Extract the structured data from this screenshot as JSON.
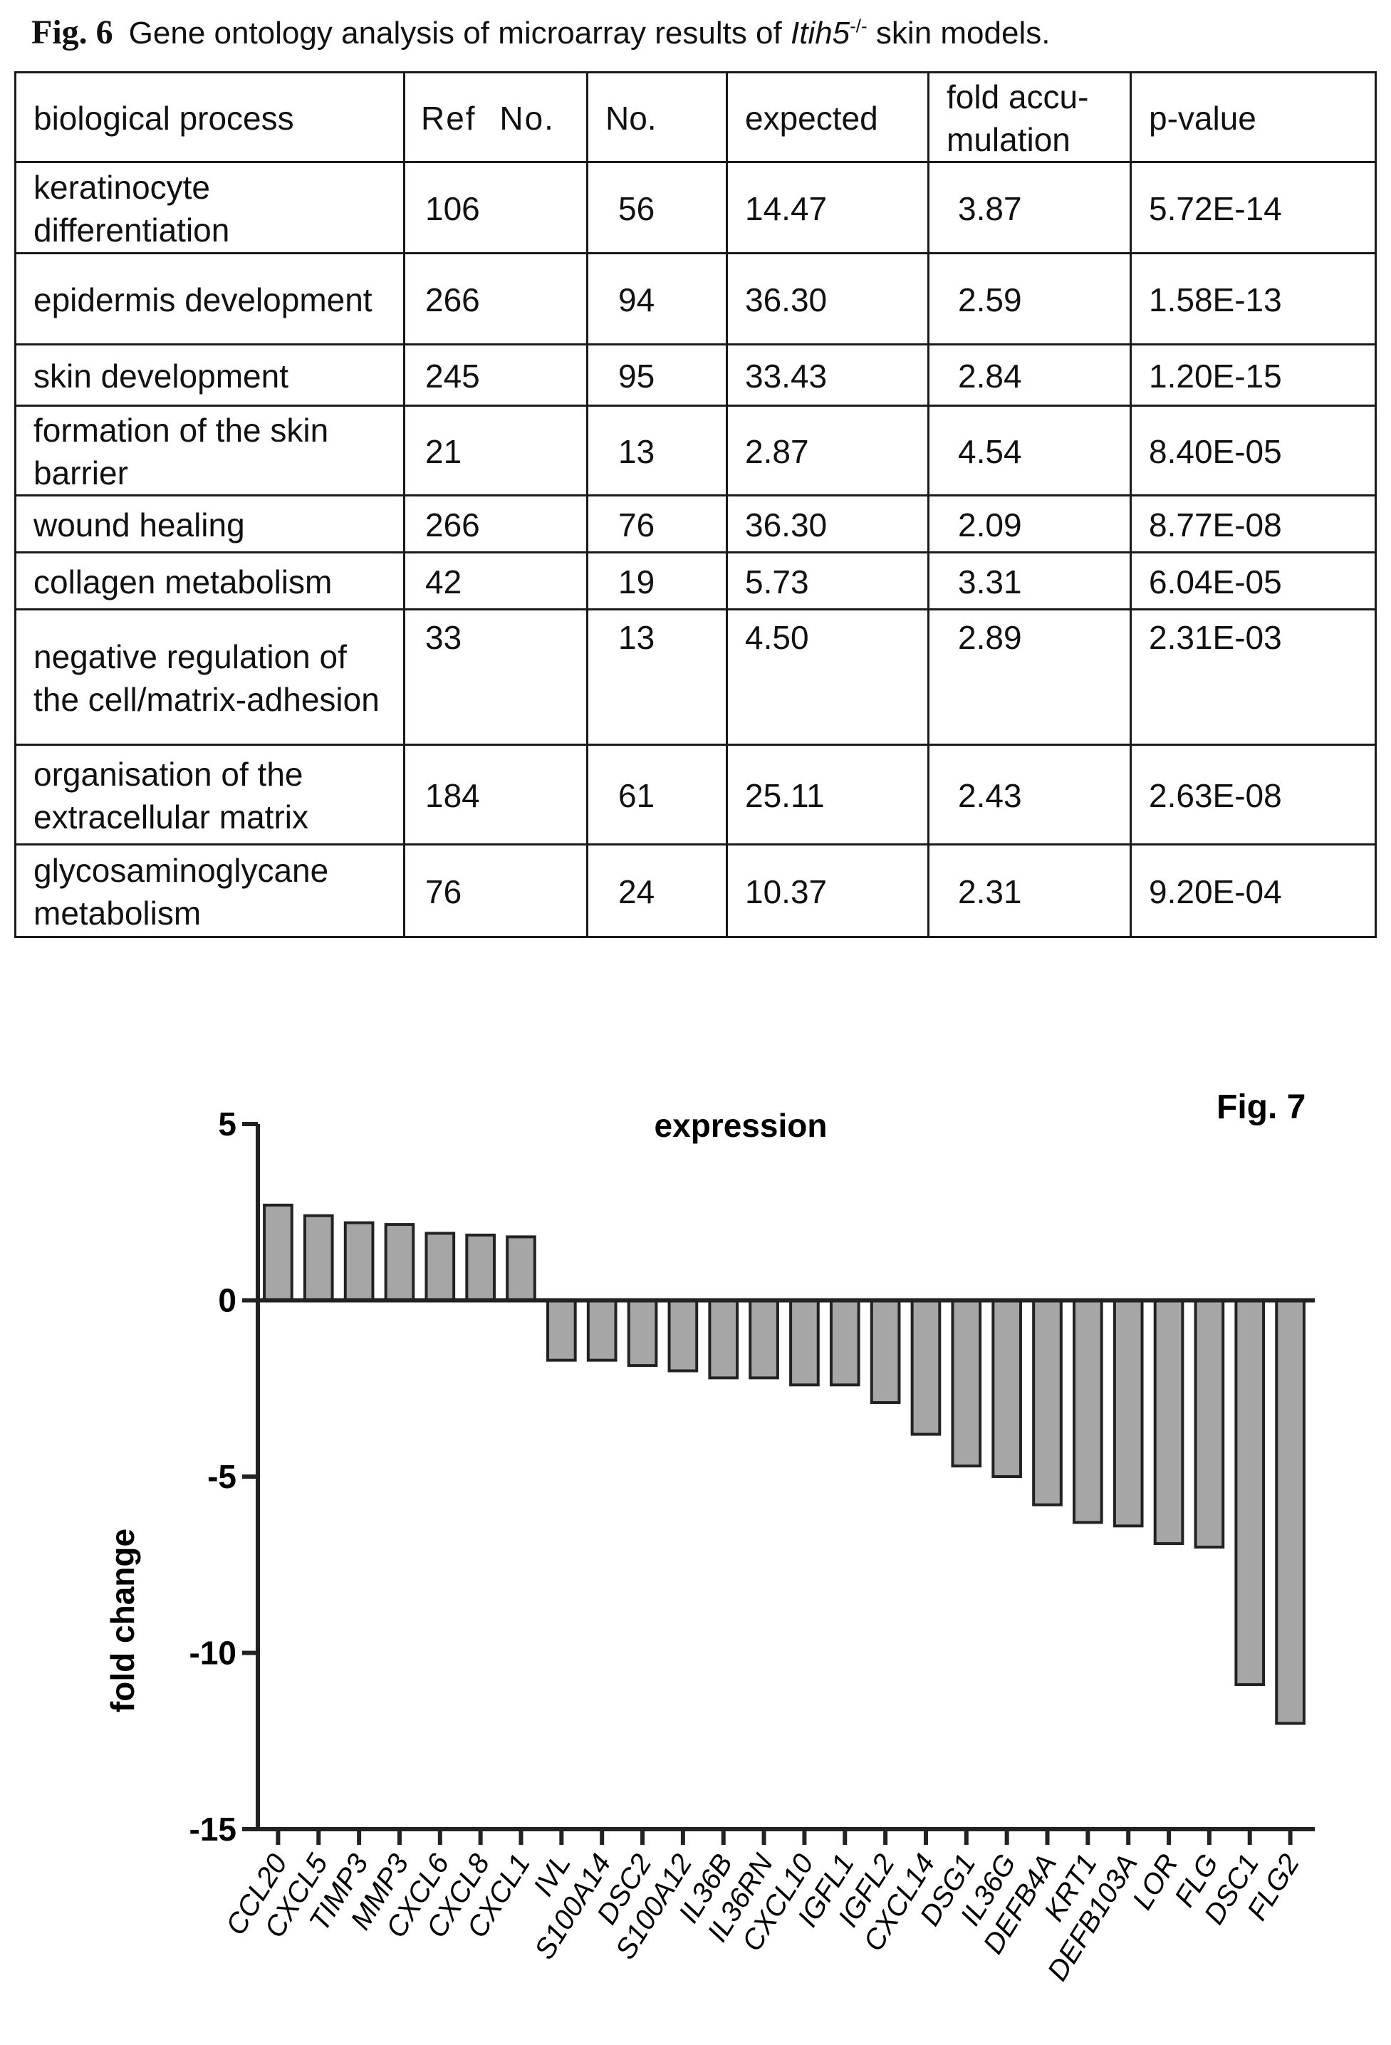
{
  "fig6": {
    "label": "Fig. 6",
    "caption_pre": "Gene ontology analysis of microarray results of ",
    "caption_gene": "Itih5",
    "caption_sup": "-/-",
    "caption_post": " skin models.",
    "headers": [
      "biological process",
      "Ref  No.",
      "No.",
      "expected",
      "fold accu-mulation",
      "p-value"
    ],
    "rows": [
      {
        "process": "keratinocyte differentiation",
        "ref_no": "106",
        "no": "56",
        "expected": "14.47",
        "fold": "3.87",
        "p_value": "5.72E-14"
      },
      {
        "process": "epidermis development",
        "ref_no": "266",
        "no": "94",
        "expected": "36.30",
        "fold": "2.59",
        "p_value": "1.58E-13"
      },
      {
        "process": "skin development",
        "ref_no": "245",
        "no": "95",
        "expected": "33.43",
        "fold": "2.84",
        "p_value": "1.20E-15"
      },
      {
        "process": "formation of the skin barrier",
        "ref_no": "21",
        "no": "13",
        "expected": "2.87",
        "fold": "4.54",
        "p_value": "8.40E-05"
      },
      {
        "process": "wound healing",
        "ref_no": "266",
        "no": "76",
        "expected": "36.30",
        "fold": "2.09",
        "p_value": "8.77E-08"
      },
      {
        "process": "collagen metabolism",
        "ref_no": "42",
        "no": "19",
        "expected": "5.73",
        "fold": "3.31",
        "p_value": "6.04E-05"
      },
      {
        "process": "negative regulation of the cell/matrix-adhesion",
        "ref_no": "33",
        "no": "13",
        "expected": "4.50",
        "fold": "2.89",
        "p_value": "2.31E-03"
      },
      {
        "process": "organisation of the extracellular matrix",
        "ref_no": "184",
        "no": "61",
        "expected": "25.11",
        "fold": "2.43",
        "p_value": "2.63E-08"
      },
      {
        "process": "glycosaminoglycane metabolism",
        "ref_no": "76",
        "no": "24",
        "expected": "10.37",
        "fold": "2.31",
        "p_value": "9.20E-04"
      }
    ]
  },
  "chart_data": {
    "type": "bar",
    "figure_label": "Fig. 7",
    "title": "expression",
    "xlabel": "",
    "ylabel": "fold change",
    "ylim": [
      -15,
      5
    ],
    "yticks": [
      5,
      0,
      -5,
      -10,
      -15
    ],
    "grid": false,
    "bar_color": "#a6a6a6",
    "categories": [
      "CCL20",
      "CXCL5",
      "TIMP3",
      "MMP3",
      "CXCL6",
      "CXCL8",
      "CXCL1",
      "IVL",
      "S100A14",
      "DSC2",
      "S100A12",
      "IL36B",
      "IL36RN",
      "CXCL10",
      "IGFL1",
      "IGFL2",
      "CXCL14",
      "DSG1",
      "IL36G",
      "DEFB4A",
      "KRT1",
      "DEFB103A",
      "LOR",
      "FLG",
      "DSC1",
      "FLG2"
    ],
    "values": [
      2.7,
      2.4,
      2.2,
      2.15,
      1.9,
      1.85,
      1.8,
      -1.7,
      -1.7,
      -1.85,
      -2.0,
      -2.2,
      -2.2,
      -2.4,
      -2.4,
      -2.9,
      -3.8,
      -4.7,
      -5.0,
      -5.8,
      -6.3,
      -6.4,
      -6.9,
      -7.0,
      -10.9,
      -12.0
    ]
  }
}
